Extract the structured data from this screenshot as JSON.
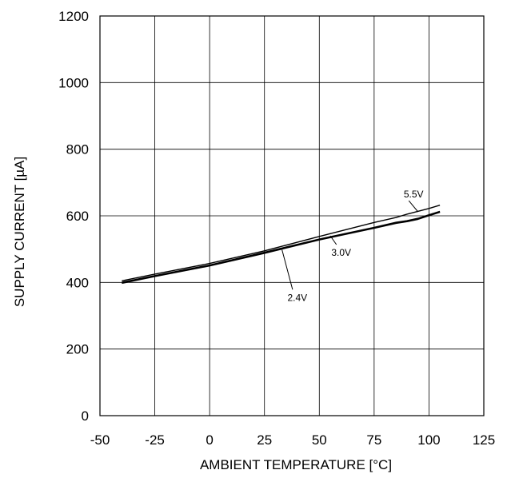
{
  "chart_data": {
    "type": "line",
    "title": "",
    "xlabel": "AMBIENT TEMPERATURE [°C]",
    "ylabel": "SUPPLY CURRENT [µA]",
    "xlim": [
      -50,
      125
    ],
    "ylim": [
      0,
      1200
    ],
    "xticks": [
      -50,
      -25,
      0,
      25,
      50,
      75,
      100,
      125
    ],
    "yticks": [
      0,
      200,
      400,
      600,
      800,
      1000,
      1200
    ],
    "xtick_labels": [
      "-50",
      "-25",
      "0",
      "25",
      "50",
      "75",
      "100",
      "125"
    ],
    "ytick_labels": [
      "0",
      "200",
      "400",
      "600",
      "800",
      "1000",
      "1200"
    ],
    "grid": true,
    "legend": "none",
    "series": [
      {
        "name": "5.5V",
        "x": [
          -40,
          -25,
          0,
          25,
          50,
          60,
          75,
          85,
          90,
          100,
          105
        ],
        "y": [
          405,
          425,
          457,
          495,
          538,
          555,
          580,
          595,
          605,
          622,
          632
        ]
      },
      {
        "name": "3.0V",
        "x": [
          -40,
          -25,
          0,
          25,
          50,
          75,
          85,
          90,
          95,
          100,
          105
        ],
        "y": [
          400,
          420,
          452,
          490,
          530,
          565,
          580,
          585,
          592,
          603,
          613
        ]
      },
      {
        "name": "2.4V",
        "x": [
          -40,
          -25,
          0,
          25,
          50,
          75,
          85,
          90,
          95,
          100,
          105
        ],
        "y": [
          398,
          418,
          450,
          488,
          528,
          563,
          578,
          583,
          590,
          601,
          611
        ]
      }
    ],
    "annotations": [
      {
        "text": "5.5V",
        "x": 93,
        "y": 655,
        "ax": 95,
        "ay": 612
      },
      {
        "text": "3.0V",
        "x": 60,
        "y": 480,
        "ax": 55,
        "ay": 540
      },
      {
        "text": "2.4V",
        "x": 40,
        "y": 345,
        "ax": 33,
        "ay": 498
      }
    ]
  }
}
